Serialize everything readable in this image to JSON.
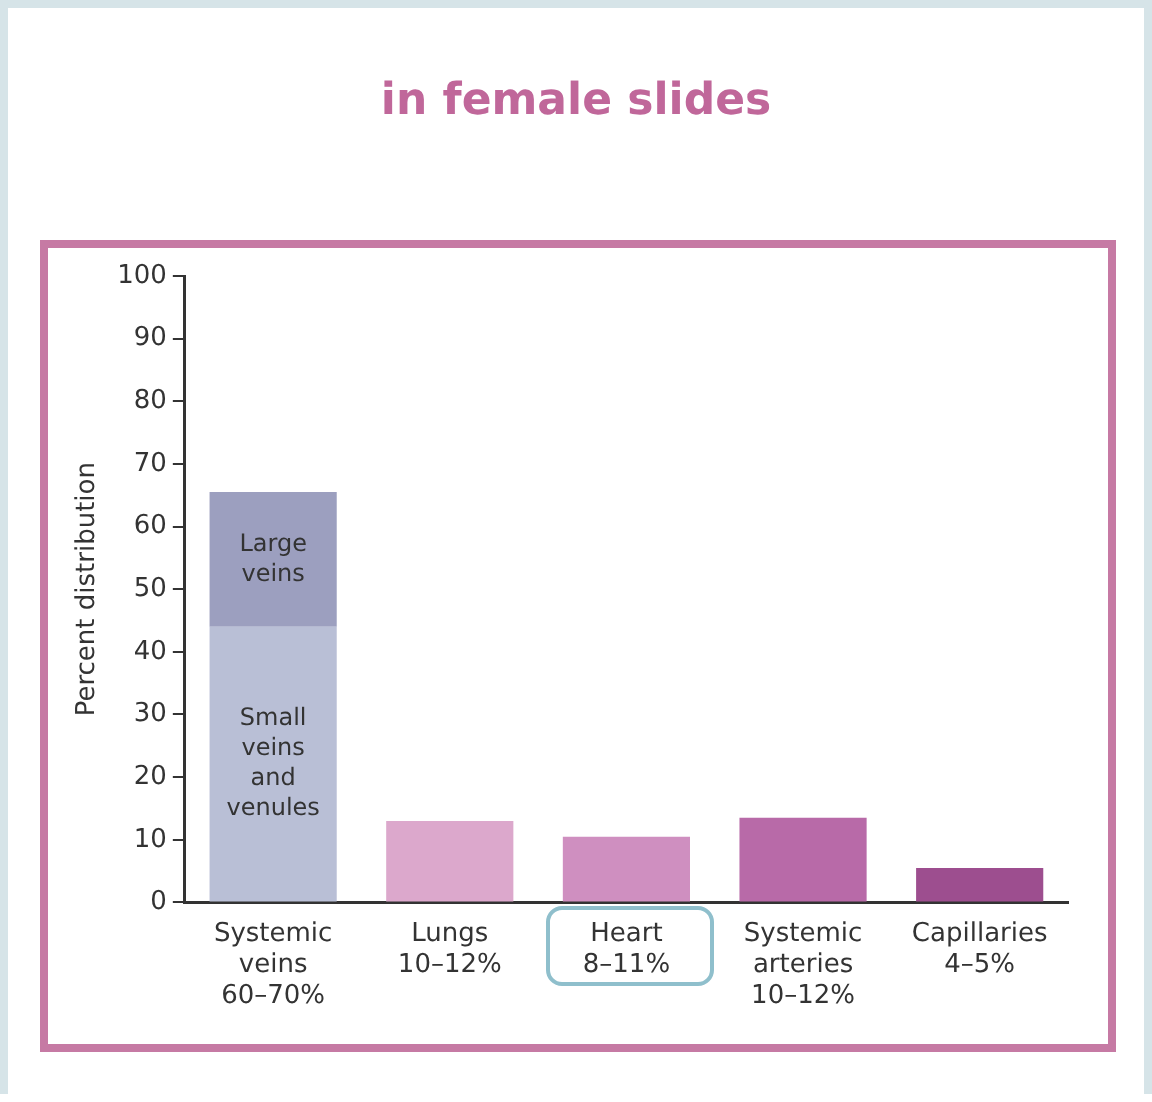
{
  "chart_data": {
    "type": "bar",
    "title": "in female slides",
    "ylabel": "Percent distribution",
    "categories": [
      "Systemic veins 60–70%",
      "Lungs 10–12%",
      "Heart 8–11%",
      "Systemic arteries 10–12%",
      "Capillaries 4–5%"
    ],
    "stacked": true,
    "series": [
      {
        "name": "Small veins and venules",
        "colors": [
          "#b9bfd6",
          "#dca8cc",
          "#cf8fc0",
          "#b86aa8",
          "#9d4e8f"
        ],
        "values": [
          44,
          13,
          10.5,
          13.5,
          5.5
        ]
      },
      {
        "name": "Large veins",
        "color": "#9c9fbf",
        "values": [
          21.5,
          null,
          null,
          null,
          null
        ]
      }
    ],
    "ylim": [
      0,
      100
    ],
    "yticks": [
      0,
      10,
      20,
      30,
      40,
      50,
      60,
      70,
      80,
      90,
      100
    ],
    "grid": false,
    "legend": false
  }
}
